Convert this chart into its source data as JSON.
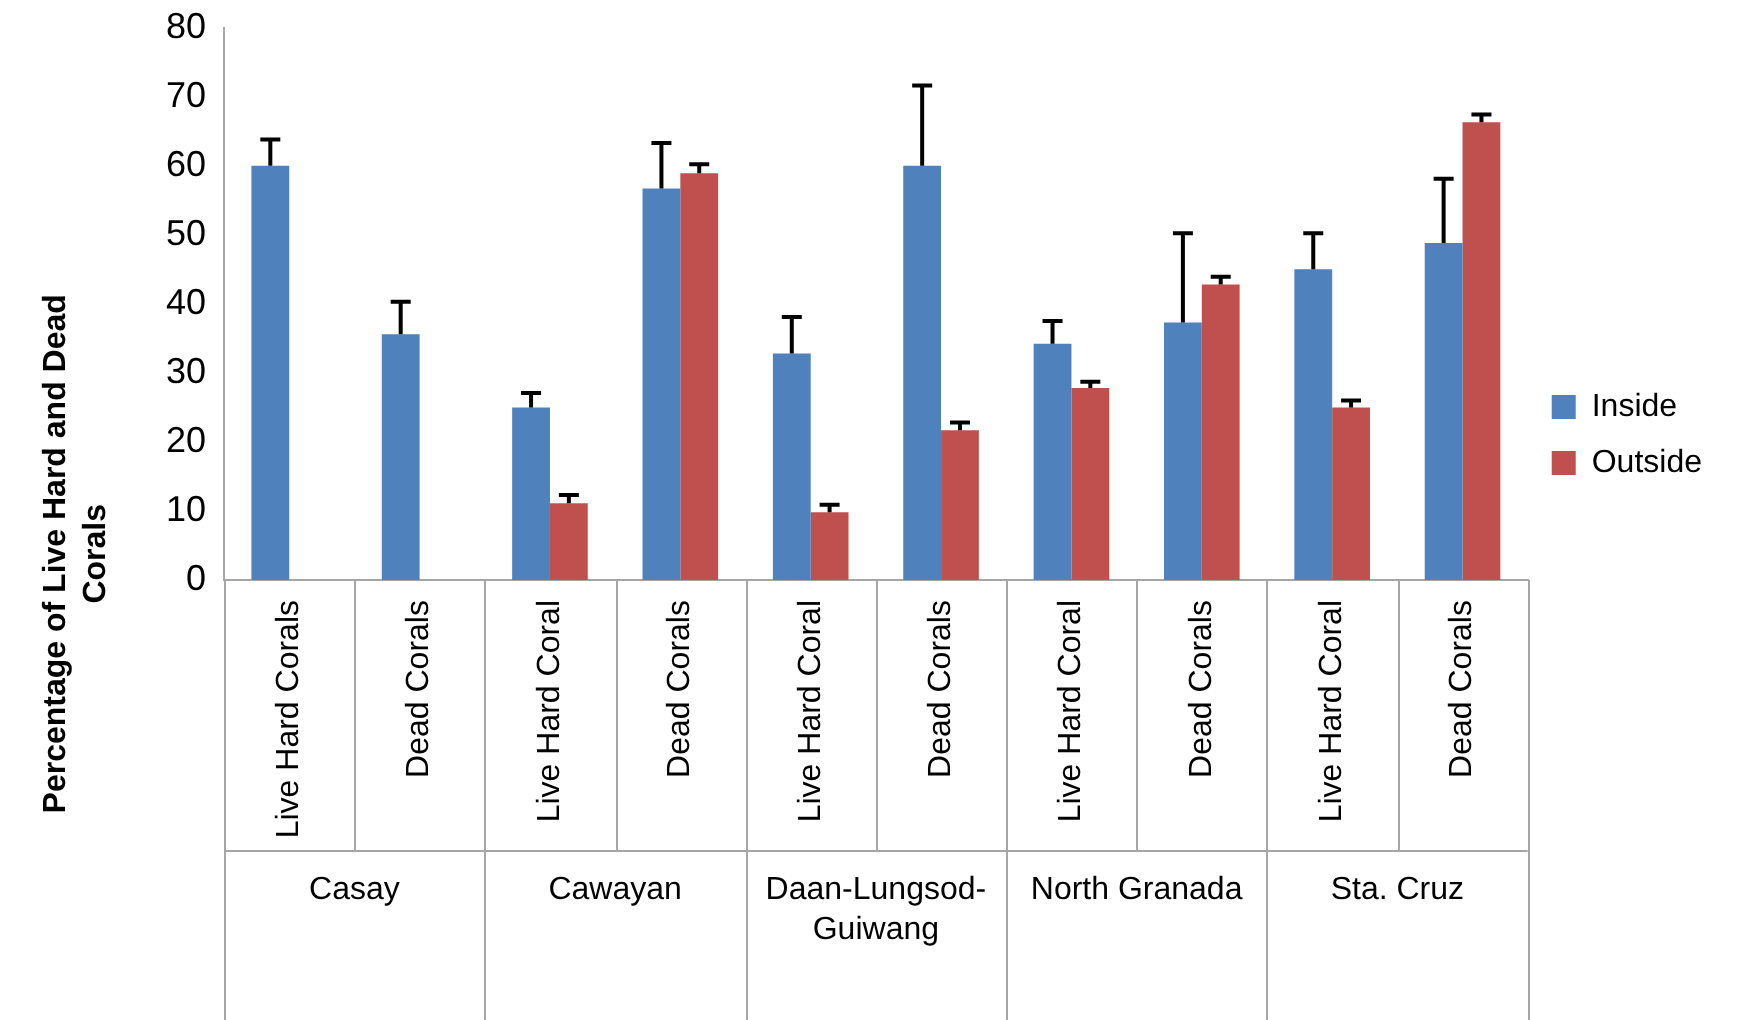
{
  "chart_data": {
    "type": "bar",
    "ylabel": "Percentage of Live Hard and Dead Corals",
    "categories": [
      "Live Hard Corals",
      "Dead Corals",
      "Live Hard Coral",
      "Dead Corals",
      "Live Hard Coral",
      "Dead Corals",
      "Live Hard Coral",
      "Dead Corals",
      "Live Hard Coral",
      "Dead Corals"
    ],
    "annotations": [
      "Casay",
      "Cawayan",
      "Daan-Lungsod-Guiwang",
      "North Granada",
      "Sta. Cruz"
    ],
    "series": [
      {
        "name": "Inside",
        "color": "#4f81bd",
        "values": [
          60,
          35.6,
          25,
          56.7,
          32.8,
          60,
          34.2,
          37.3,
          45,
          48.8
        ],
        "errors": [
          [
            60,
            63.8
          ],
          [
            35.6,
            40.3
          ],
          [
            25,
            27.1
          ],
          [
            56.7,
            63.3
          ],
          [
            32.8,
            38.1
          ],
          [
            60,
            71.6
          ],
          [
            34.2,
            37.5
          ],
          [
            37.3,
            50.2
          ],
          [
            45,
            50.2
          ],
          [
            48.8,
            58.1
          ]
        ]
      },
      {
        "name": "Outside",
        "color": "#c0504d",
        "values": [
          null,
          null,
          11.1,
          58.9,
          9.8,
          21.7,
          27.8,
          42.8,
          25,
          66.3
        ],
        "errors": [
          null,
          null,
          [
            11.1,
            12.3
          ],
          [
            58.9,
            60.2
          ],
          [
            9.8,
            10.9
          ],
          [
            21.7,
            22.8
          ],
          [
            27.8,
            28.7
          ],
          [
            42.8,
            43.9
          ],
          [
            25,
            26
          ],
          [
            66.3,
            67.4
          ]
        ]
      }
    ],
    "ylim": [
      0,
      80
    ],
    "yticks": [
      0,
      10,
      20,
      30,
      40,
      50,
      60,
      70,
      80
    ],
    "grid": false,
    "legend": "right"
  }
}
